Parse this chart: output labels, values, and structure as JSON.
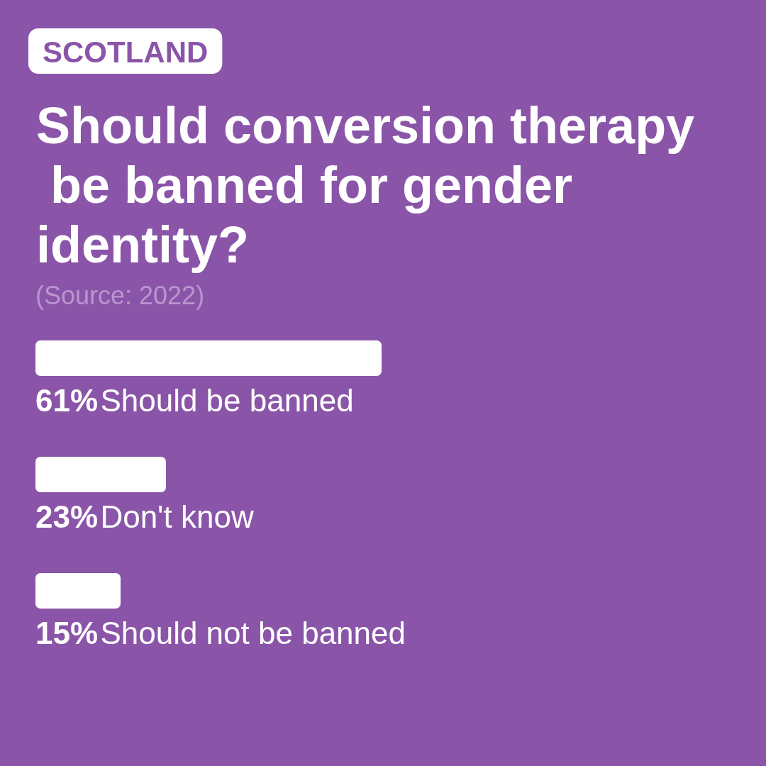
{
  "chart_data": {
    "type": "bar",
    "orientation": "horizontal",
    "subtitle": "SCOTLAND",
    "title": "Should conversion therapy be banned for gender identity?",
    "annotations": [
      "(Source: 2022)"
    ],
    "categories": [
      "Should be banned",
      "Don't know",
      "Should not be banned"
    ],
    "values": [
      61,
      23,
      15
    ],
    "value_labels": [
      "61%",
      "23%",
      "15%"
    ],
    "color": "#ffffff",
    "tick_labels": false
  }
}
